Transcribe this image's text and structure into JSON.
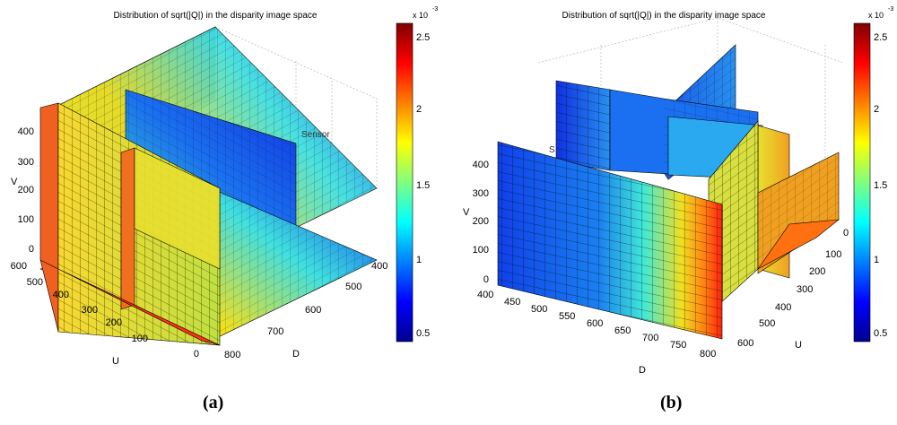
{
  "chart_data": [
    {
      "type": "heatmap",
      "view": "a",
      "title": "Distribution of sqrt(|Q|) in the disparity image space",
      "xlabel": "U",
      "ylabel": "D",
      "zlabel": "V",
      "u_ticks": [
        "0",
        "100",
        "200",
        "300",
        "400",
        "500",
        "600"
      ],
      "d_ticks": [
        "400",
        "500",
        "600",
        "700",
        "800"
      ],
      "v_ticks": [
        "0",
        "100",
        "200",
        "300",
        "400"
      ],
      "sensor_label": "Sensor",
      "colorbar": {
        "ticks": [
          "0.5",
          "1",
          "1.5",
          "2",
          "2.5"
        ],
        "exponent_base": "x 10",
        "exponent": "-3",
        "range": [
          0.0004,
          0.0026
        ]
      },
      "caption": "(a)"
    },
    {
      "type": "heatmap",
      "view": "b",
      "title": "Distribution of sqrt(|Q|) in the disparity image space",
      "xlabel": "D",
      "ylabel": "U",
      "zlabel": "V",
      "d_ticks": [
        "400",
        "450",
        "500",
        "550",
        "600",
        "650",
        "700",
        "750",
        "800"
      ],
      "u_ticks": [
        "0",
        "100",
        "200",
        "300",
        "400",
        "500",
        "600"
      ],
      "v_ticks": [
        "0",
        "100",
        "200",
        "300",
        "400"
      ],
      "sensor_label": "S",
      "colorbar": {
        "ticks": [
          "0.5",
          "1",
          "1.5",
          "2",
          "2.5"
        ],
        "exponent_base": "x 10",
        "exponent": "-3",
        "range": [
          0.0004,
          0.0026
        ]
      },
      "caption": "(b)"
    }
  ],
  "colors": {
    "jet": [
      "#00008f",
      "#0000ff",
      "#0080ff",
      "#00ffff",
      "#80ff80",
      "#ffff00",
      "#ff8000",
      "#ff0000",
      "#800000"
    ]
  }
}
